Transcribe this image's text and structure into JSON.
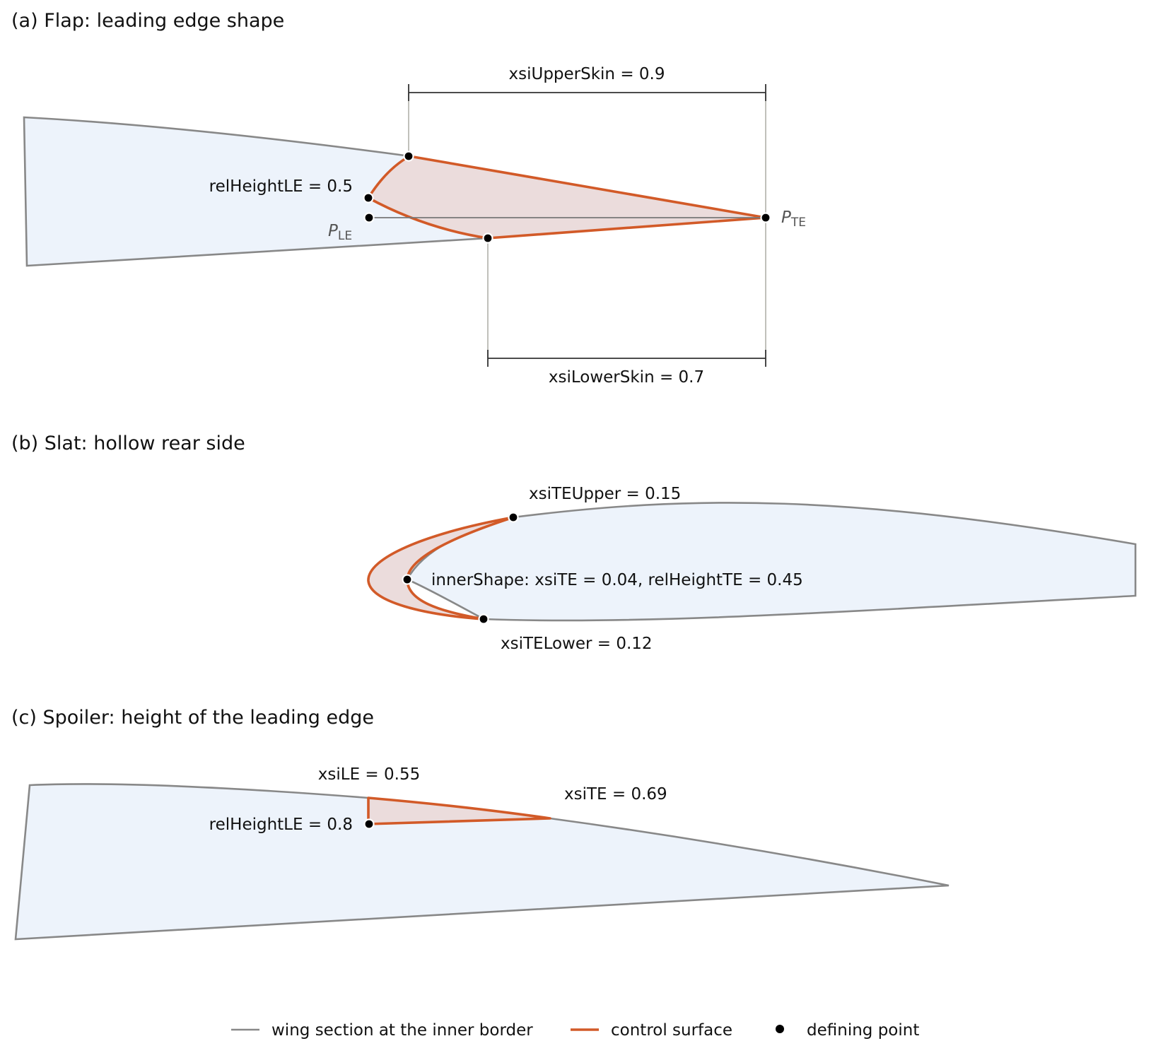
{
  "panels": {
    "a": {
      "title": "(a) Flap: leading edge shape",
      "labels": {
        "xsi_upper_skin": "xsiUpperSkin = 0.9",
        "xsi_lower_skin": "xsiLowerSkin = 0.7",
        "rel_height_le": "relHeightLE = 0.5",
        "p_le_main": "P",
        "p_le_sub": "LE",
        "p_te_main": "P",
        "p_te_sub": "TE"
      }
    },
    "b": {
      "title": "(b) Slat: hollow rear side",
      "labels": {
        "xsi_te_upper": "xsiTEUpper = 0.15",
        "inner_shape": "innerShape: xsiTE = 0.04, relHeightTE = 0.45",
        "xsi_te_lower": "xsiTELower = 0.12"
      }
    },
    "c": {
      "title": "(c) Spoiler: height of the leading edge",
      "labels": {
        "xsi_le": "xsiLE = 0.55",
        "xsi_te": "xsiTE = 0.69",
        "rel_height_le": "relHeightLE = 0.8"
      }
    }
  },
  "legend": {
    "wing_section": "wing section at the inner border",
    "control_surface": "control surface",
    "defining_point": "defining point"
  },
  "colors": {
    "wing_outline": "#888888",
    "wing_fill": "#edf3fb",
    "control_surface": "#d25a28",
    "control_surface_fill": "#ebdcdc",
    "point": "#000000"
  }
}
